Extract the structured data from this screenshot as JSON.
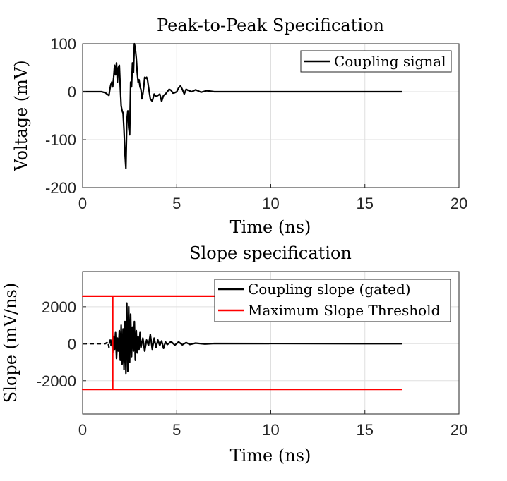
{
  "chart_data": [
    {
      "type": "line",
      "title": "Peak-to-Peak Specification",
      "xlabel": "Time (ns)",
      "ylabel": "Voltage (mV)",
      "xlim": [
        0,
        20
      ],
      "ylim": [
        -200,
        100
      ],
      "xticks": [
        0,
        5,
        10,
        15,
        20
      ],
      "yticks": [
        -200,
        -100,
        0,
        100
      ],
      "xtick_labels": [
        "0",
        "5",
        "10",
        "15",
        "20"
      ],
      "ytick_labels": [
        "-200",
        "-100",
        "0",
        "100"
      ],
      "grid": true,
      "legend_position": "top-right",
      "series": [
        {
          "name": "Coupling signal",
          "color": "#000000",
          "style": "solid",
          "x": [
            0,
            1.0,
            1.2,
            1.3,
            1.4,
            1.45,
            1.5,
            1.55,
            1.6,
            1.65,
            1.7,
            1.75,
            1.8,
            1.85,
            1.9,
            1.95,
            2.0,
            2.05,
            2.1,
            2.15,
            2.2,
            2.25,
            2.3,
            2.35,
            2.4,
            2.45,
            2.5,
            2.55,
            2.6,
            2.65,
            2.7,
            2.75,
            2.8,
            2.85,
            2.9,
            2.95,
            3.0,
            3.05,
            3.1,
            3.15,
            3.2,
            3.25,
            3.3,
            3.35,
            3.4,
            3.45,
            3.5,
            3.6,
            3.7,
            3.8,
            3.9,
            4.0,
            4.1,
            4.2,
            4.3,
            4.4,
            4.5,
            4.6,
            4.7,
            4.8,
            4.9,
            5.0,
            5.1,
            5.2,
            5.3,
            5.4,
            5.5,
            5.6,
            5.8,
            6.0,
            6.3,
            6.6,
            7.0,
            17.0
          ],
          "y": [
            0,
            0,
            -2,
            -5,
            -8,
            5,
            15,
            20,
            10,
            30,
            55,
            35,
            60,
            20,
            50,
            55,
            10,
            -30,
            -40,
            -45,
            -80,
            -130,
            -160,
            -60,
            -40,
            -75,
            -90,
            20,
            10,
            60,
            40,
            100,
            90,
            70,
            40,
            20,
            25,
            10,
            5,
            -15,
            -5,
            10,
            30,
            28,
            30,
            25,
            10,
            -15,
            -20,
            -5,
            -10,
            -8,
            -5,
            -20,
            -8,
            -5,
            0,
            5,
            3,
            -3,
            -2,
            0,
            8,
            12,
            5,
            -5,
            5,
            3,
            0,
            4,
            -1,
            2,
            0,
            0
          ]
        }
      ]
    },
    {
      "type": "line",
      "title": "Slope specification",
      "xlabel": "Time (ns)",
      "ylabel": "Slope (mV/ns)",
      "xlim": [
        0,
        20
      ],
      "ylim": [
        -3800,
        3900
      ],
      "xticks": [
        0,
        5,
        10,
        15,
        20
      ],
      "yticks": [
        -2000,
        0,
        2000
      ],
      "xtick_labels": [
        "0",
        "5",
        "10",
        "15",
        "20"
      ],
      "ytick_labels": [
        "-2000",
        "0",
        "2000"
      ],
      "grid": true,
      "legend_position": "top-right",
      "series": [
        {
          "name": "Coupling slope (gated)",
          "color": "#000000",
          "style": "dashed",
          "x": [
            0,
            1.2,
            1.35,
            1.4,
            1.45,
            1.5
          ],
          "y": [
            0,
            0,
            100,
            -200,
            300,
            -100
          ]
        },
        {
          "name": "Coupling slope (gated)",
          "color": "#000000",
          "style": "solid",
          "x": [
            1.5,
            1.55,
            1.6,
            1.65,
            1.7,
            1.75,
            1.8,
            1.85,
            1.9,
            1.95,
            2.0,
            2.05,
            2.1,
            2.15,
            2.2,
            2.25,
            2.3,
            2.35,
            2.4,
            2.45,
            2.5,
            2.55,
            2.6,
            2.65,
            2.7,
            2.75,
            2.8,
            2.85,
            2.9,
            2.95,
            3.0,
            3.05,
            3.1,
            3.2,
            3.3,
            3.4,
            3.5,
            3.6,
            3.7,
            3.8,
            3.9,
            4.0,
            4.1,
            4.2,
            4.3,
            4.4,
            4.5,
            4.7,
            4.9,
            5.1,
            5.3,
            5.5,
            5.7,
            6.0,
            6.5,
            7.0,
            17.0
          ],
          "y": [
            -100,
            200,
            -500,
            400,
            -300,
            600,
            -800,
            300,
            -400,
            700,
            -900,
            1000,
            -1100,
            800,
            -1400,
            1200,
            -1600,
            2200,
            -1500,
            2000,
            -1000,
            1600,
            -700,
            900,
            -400,
            1200,
            -900,
            700,
            -500,
            400,
            -300,
            600,
            -200,
            300,
            -400,
            200,
            -100,
            500,
            -300,
            300,
            -200,
            200,
            -100,
            150,
            -250,
            100,
            -50,
            120,
            -80,
            100,
            -60,
            60,
            -40,
            30,
            -20,
            10,
            0
          ]
        },
        {
          "name": "Maximum Slope Threshold",
          "color": "#ff0000",
          "style": "solid",
          "x": [
            17.0,
            0,
            1.6,
            1.6,
            0,
            17.0
          ],
          "y": [
            2570,
            2570,
            2570,
            -2470,
            -2470,
            -2470
          ]
        }
      ],
      "legend": [
        {
          "name": "Coupling slope (gated)",
          "color": "#000000"
        },
        {
          "name": "Maximum Slope Threshold",
          "color": "#ff0000"
        }
      ]
    }
  ]
}
